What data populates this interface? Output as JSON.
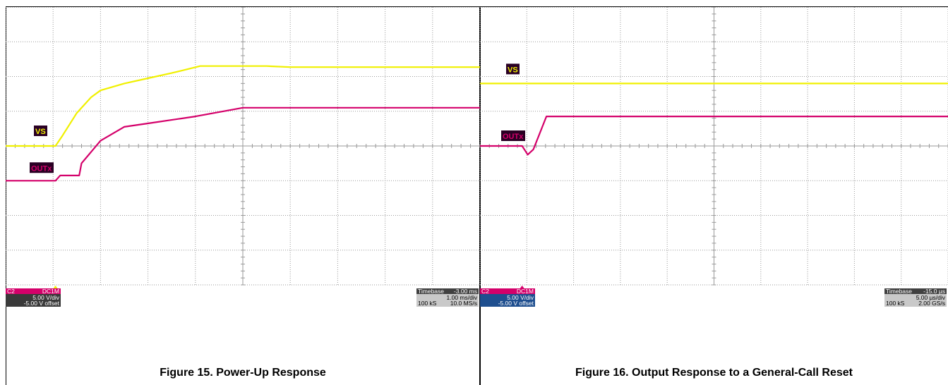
{
  "colors": {
    "vs_trace": "#f0f000",
    "outx_trace": "#d4006a",
    "grid": "#9a9a9a",
    "label_bg": "#2a0024",
    "channel_tag": "#d4006a",
    "channel_box": "#3a3a3a",
    "channel_box_selected": "#1f4f8f",
    "timebase_box": "#c9c9c9"
  },
  "chart_data": [
    {
      "type": "line",
      "title": "Figure 15. Power-Up Response",
      "xlabel": "",
      "ylabel": "",
      "grid": true,
      "x_unit": "ms",
      "x_divisions": 10,
      "y_divisions": 8,
      "xlim": [
        -5,
        5
      ],
      "ylim": [
        -4,
        4
      ],
      "series": [
        {
          "name": "VS",
          "color": "#f0f000",
          "x": [
            -5,
            -3.95,
            -3.8,
            -3.5,
            -3.2,
            -3.0,
            -2.5,
            -2.0,
            -1.5,
            -0.9,
            0.0,
            0.5,
            1.0,
            5.0
          ],
          "y": [
            0.0,
            0.0,
            0.3,
            0.95,
            1.4,
            1.6,
            1.8,
            1.95,
            2.1,
            2.3,
            2.3,
            2.3,
            2.27,
            2.27
          ]
        },
        {
          "name": "OUTx",
          "color": "#d4006a",
          "x": [
            -5,
            -3.95,
            -3.85,
            -3.45,
            -3.4,
            -3.0,
            -2.5,
            -2.0,
            -1.0,
            0.0,
            1.0,
            5.0
          ],
          "y": [
            -1.0,
            -1.0,
            -0.85,
            -0.85,
            -0.5,
            0.15,
            0.55,
            0.65,
            0.85,
            1.1,
            1.1,
            1.1
          ]
        }
      ],
      "labels": {
        "vs": "VS",
        "outx": "OUTx"
      },
      "channel": {
        "id": "C2",
        "coupling": "DC1M",
        "scale": "5.00 V/div",
        "offset": "-5.00 V offset"
      },
      "timebase": {
        "label": "Timebase",
        "delay": "-3.00 ms",
        "scale": "1.00 ms/div",
        "samples": "100 kS",
        "rate": "10.0 MS/s"
      }
    },
    {
      "type": "line",
      "title": "Figure 16. Output Response to a General-Call Reset",
      "xlabel": "",
      "ylabel": "",
      "grid": true,
      "x_unit": "µs",
      "x_divisions": 10,
      "y_divisions": 8,
      "xlim": [
        -25,
        25
      ],
      "ylim": [
        -4,
        4
      ],
      "series": [
        {
          "name": "VS",
          "color": "#f0f000",
          "x": [
            -25,
            25
          ],
          "y": [
            1.8,
            1.8
          ]
        },
        {
          "name": "OUTx",
          "color": "#d4006a",
          "x": [
            -25,
            -20.5,
            -19.9,
            -19.3,
            -17.9,
            -15.0,
            25.0
          ],
          "y": [
            0.0,
            0.0,
            -0.25,
            -0.1,
            0.85,
            0.85,
            0.85
          ]
        }
      ],
      "labels": {
        "vs": "VS",
        "outx": "OUTx"
      },
      "channel": {
        "id": "C2",
        "coupling": "DC1M",
        "scale": "5.00 V/div",
        "offset": "-5.00 V offset"
      },
      "timebase": {
        "label": "Timebase",
        "delay": "-15.0 µs",
        "scale": "5.00 µs/div",
        "samples": "100 kS",
        "rate": "2.00 GS/s"
      }
    }
  ]
}
